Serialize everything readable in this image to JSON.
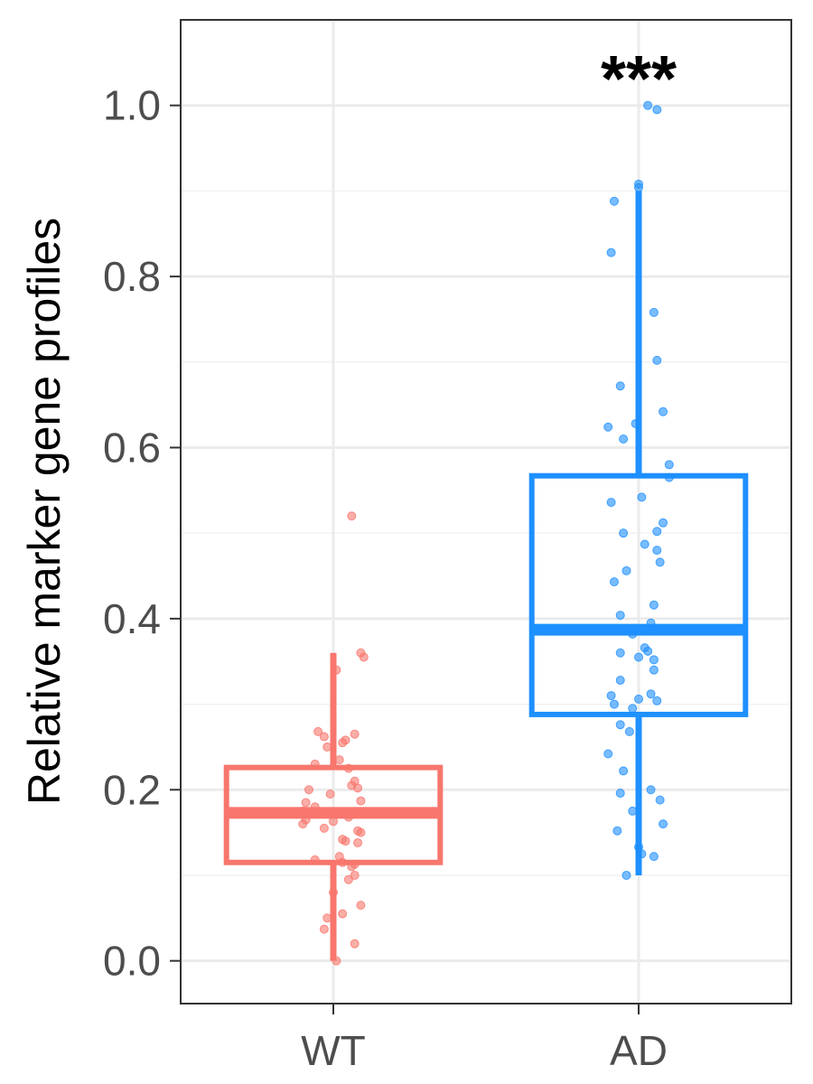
{
  "chart_data": {
    "type": "boxplot",
    "title": "",
    "xlabel": "",
    "ylabel": "Relative marker gene profiles",
    "ylim": [
      -0.05,
      1.1
    ],
    "yticks": [
      0.0,
      0.2,
      0.4,
      0.6,
      0.8,
      1.0
    ],
    "yticks_labels": [
      "0.0",
      "0.2",
      "0.4",
      "0.6",
      "0.8",
      "1.0"
    ],
    "grid": true,
    "legend": "none",
    "categories": [
      "WT",
      "AD"
    ],
    "annotation": {
      "text": "***",
      "category": "AD",
      "y": 1.06
    },
    "series": [
      {
        "category": "WT",
        "color": "#F8766D",
        "box": {
          "whisker_low": 0.0,
          "q1": 0.115,
          "median": 0.173,
          "q3": 0.226,
          "whisker_high": 0.36
        },
        "points": [
          {
            "x": 0.06,
            "y": 0.52
          },
          {
            "x": 0.09,
            "y": 0.36
          },
          {
            "x": 0.1,
            "y": 0.355
          },
          {
            "x": 0.01,
            "y": 0.34
          },
          {
            "x": -0.05,
            "y": 0.268
          },
          {
            "x": -0.03,
            "y": 0.262
          },
          {
            "x": 0.07,
            "y": 0.265
          },
          {
            "x": 0.04,
            "y": 0.258
          },
          {
            "x": 0.03,
            "y": 0.255
          },
          {
            "x": -0.02,
            "y": 0.25
          },
          {
            "x": 0.02,
            "y": 0.235
          },
          {
            "x": -0.06,
            "y": 0.23
          },
          {
            "x": 0.05,
            "y": 0.225
          },
          {
            "x": 0.07,
            "y": 0.21
          },
          {
            "x": 0.06,
            "y": 0.205
          },
          {
            "x": 0.08,
            "y": 0.202
          },
          {
            "x": -0.08,
            "y": 0.2
          },
          {
            "x": -0.01,
            "y": 0.195
          },
          {
            "x": 0.09,
            "y": 0.187
          },
          {
            "x": -0.09,
            "y": 0.185
          },
          {
            "x": -0.06,
            "y": 0.18
          },
          {
            "x": -0.1,
            "y": 0.175
          },
          {
            "x": -0.04,
            "y": 0.172
          },
          {
            "x": 0.05,
            "y": 0.168
          },
          {
            "x": -0.09,
            "y": 0.165
          },
          {
            "x": 0.0,
            "y": 0.163
          },
          {
            "x": -0.1,
            "y": 0.16
          },
          {
            "x": -0.03,
            "y": 0.155
          },
          {
            "x": 0.08,
            "y": 0.152
          },
          {
            "x": 0.09,
            "y": 0.15
          },
          {
            "x": 0.03,
            "y": 0.142
          },
          {
            "x": 0.04,
            "y": 0.14
          },
          {
            "x": 0.08,
            "y": 0.138
          },
          {
            "x": 0.02,
            "y": 0.122
          },
          {
            "x": -0.06,
            "y": 0.118
          },
          {
            "x": 0.03,
            "y": 0.115
          },
          {
            "x": 0.07,
            "y": 0.113
          },
          {
            "x": 0.06,
            "y": 0.11
          },
          {
            "x": 0.07,
            "y": 0.1
          },
          {
            "x": 0.05,
            "y": 0.095
          },
          {
            "x": 0.0,
            "y": 0.08
          },
          {
            "x": 0.09,
            "y": 0.065
          },
          {
            "x": 0.03,
            "y": 0.055
          },
          {
            "x": -0.02,
            "y": 0.05
          },
          {
            "x": -0.03,
            "y": 0.037
          },
          {
            "x": 0.07,
            "y": 0.02
          },
          {
            "x": 0.01,
            "y": 0.0
          }
        ]
      },
      {
        "category": "AD",
        "color": "#1E90FF",
        "box": {
          "whisker_low": 0.1,
          "q1": 0.288,
          "median": 0.387,
          "q3": 0.567,
          "whisker_high": 0.9
        },
        "points": [
          {
            "x": 0.03,
            "y": 1.0
          },
          {
            "x": 0.06,
            "y": 0.995
          },
          {
            "x": 0.0,
            "y": 0.908
          },
          {
            "x": 0.0,
            "y": 0.904
          },
          {
            "x": -0.08,
            "y": 0.888
          },
          {
            "x": -0.09,
            "y": 0.828
          },
          {
            "x": 0.05,
            "y": 0.758
          },
          {
            "x": 0.06,
            "y": 0.702
          },
          {
            "x": -0.06,
            "y": 0.672
          },
          {
            "x": 0.08,
            "y": 0.642
          },
          {
            "x": -0.01,
            "y": 0.628
          },
          {
            "x": -0.1,
            "y": 0.624
          },
          {
            "x": -0.05,
            "y": 0.61
          },
          {
            "x": 0.1,
            "y": 0.58
          },
          {
            "x": 0.1,
            "y": 0.565
          },
          {
            "x": 0.01,
            "y": 0.542
          },
          {
            "x": -0.09,
            "y": 0.536
          },
          {
            "x": 0.08,
            "y": 0.512
          },
          {
            "x": 0.06,
            "y": 0.502
          },
          {
            "x": -0.05,
            "y": 0.5
          },
          {
            "x": 0.02,
            "y": 0.487
          },
          {
            "x": 0.06,
            "y": 0.48
          },
          {
            "x": 0.07,
            "y": 0.466
          },
          {
            "x": -0.04,
            "y": 0.456
          },
          {
            "x": -0.08,
            "y": 0.443
          },
          {
            "x": 0.05,
            "y": 0.416
          },
          {
            "x": -0.06,
            "y": 0.404
          },
          {
            "x": 0.04,
            "y": 0.395
          },
          {
            "x": -0.02,
            "y": 0.382
          },
          {
            "x": 0.02,
            "y": 0.366
          },
          {
            "x": 0.03,
            "y": 0.362
          },
          {
            "x": -0.06,
            "y": 0.36
          },
          {
            "x": 0.0,
            "y": 0.355
          },
          {
            "x": 0.05,
            "y": 0.352
          },
          {
            "x": 0.05,
            "y": 0.34
          },
          {
            "x": -0.06,
            "y": 0.328
          },
          {
            "x": 0.04,
            "y": 0.312
          },
          {
            "x": -0.09,
            "y": 0.31
          },
          {
            "x": 0.0,
            "y": 0.306
          },
          {
            "x": 0.06,
            "y": 0.304
          },
          {
            "x": -0.08,
            "y": 0.3
          },
          {
            "x": -0.02,
            "y": 0.295
          },
          {
            "x": -0.06,
            "y": 0.276
          },
          {
            "x": -0.03,
            "y": 0.268
          },
          {
            "x": -0.1,
            "y": 0.242
          },
          {
            "x": -0.05,
            "y": 0.222
          },
          {
            "x": 0.04,
            "y": 0.2
          },
          {
            "x": -0.06,
            "y": 0.196
          },
          {
            "x": 0.07,
            "y": 0.188
          },
          {
            "x": -0.02,
            "y": 0.175
          },
          {
            "x": 0.08,
            "y": 0.16
          },
          {
            "x": -0.07,
            "y": 0.152
          },
          {
            "x": 0.0,
            "y": 0.133
          },
          {
            "x": 0.01,
            "y": 0.125
          },
          {
            "x": 0.05,
            "y": 0.122
          },
          {
            "x": -0.04,
            "y": 0.1
          }
        ]
      }
    ]
  }
}
